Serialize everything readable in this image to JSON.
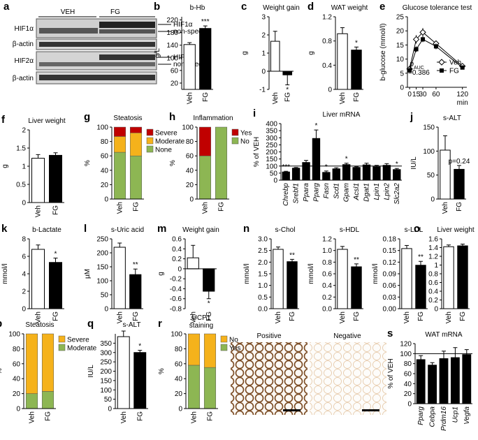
{
  "blot": {
    "letter": "a",
    "groups": [
      "VEH",
      "FG"
    ],
    "rows": [
      "HIF1α",
      "β-actin",
      "HIF2α",
      "β-actin"
    ],
    "arrows": [
      "HIF1α",
      "non-specific",
      "HIF2α",
      "non-specific"
    ]
  },
  "micrographs": {
    "labels": [
      "Positive",
      "Negative"
    ]
  },
  "chart_data": [
    {
      "type": "bar",
      "letter": "b",
      "title": "b-Hb",
      "ylabel": "g/L",
      "categories": [
        "Veh",
        "FG"
      ],
      "values": [
        142,
        193
      ],
      "errors": [
        6,
        8
      ],
      "colors": [
        "#ffffff",
        "#000000"
      ],
      "ylim": [
        0,
        230
      ],
      "yticks": [
        20,
        60,
        100,
        140,
        180,
        220
      ],
      "value_annotations": [
        null,
        "***"
      ]
    },
    {
      "type": "bar",
      "letter": "c",
      "title": "Weight gain",
      "ylabel": "g",
      "categories": [
        "Veh",
        "FG"
      ],
      "values": [
        1.65,
        -0.2
      ],
      "errors": [
        0.55,
        0.55
      ],
      "colors": [
        "#ffffff",
        "#000000"
      ],
      "ylim": [
        -1,
        3
      ],
      "yticks": [
        -1,
        0,
        1,
        2,
        3
      ],
      "value_annotations": [
        null,
        "*"
      ]
    },
    {
      "type": "bar",
      "letter": "d",
      "title": "WAT weight",
      "ylabel": "g",
      "categories": [
        "Veh",
        "FG"
      ],
      "values": [
        0.92,
        0.65
      ],
      "errors": [
        0.1,
        0.05
      ],
      "colors": [
        "#ffffff",
        "#000000"
      ],
      "ylim": [
        0,
        1.2
      ],
      "yticks": [
        0,
        0.4,
        0.8,
        1.2
      ],
      "value_annotations": [
        null,
        "*"
      ]
    },
    {
      "type": "line",
      "letter": "e",
      "title": "Glucose tolerance test",
      "ylabel": "b-glucose (mmol/l)",
      "xlabel": "min",
      "x": [
        0,
        15,
        30,
        60,
        120
      ],
      "xlim": [
        -5,
        130
      ],
      "xticks": [
        0,
        15,
        30,
        60,
        120
      ],
      "ylim": [
        0,
        25
      ],
      "yticks": [
        0,
        5,
        10,
        15,
        20,
        25
      ],
      "series": [
        {
          "name": "Veh",
          "color": "#000000",
          "marker": "diamond",
          "values": [
            6.5,
            17,
            19.5,
            15.5,
            7.5
          ],
          "errors": [
            0.5,
            1.5,
            1.5,
            1,
            0.8
          ]
        },
        {
          "name": "FG",
          "color": "#000000",
          "marker": "square",
          "values": [
            6,
            13.5,
            17,
            14.5,
            7
          ],
          "errors": [
            0.5,
            1,
            1,
            1,
            0.6
          ]
        }
      ],
      "annotation": [
        "p",
        "AUC",
        "=0.386"
      ]
    },
    {
      "type": "bar",
      "letter": "f",
      "title": "Liver weight",
      "ylabel": "g",
      "categories": [
        "Veh",
        "FG"
      ],
      "values": [
        1.22,
        1.3
      ],
      "errors": [
        0.1,
        0.07
      ],
      "colors": [
        "#ffffff",
        "#000000"
      ],
      "ylim": [
        0,
        2
      ],
      "yticks": [
        0,
        0.5,
        1,
        1.5,
        2
      ]
    },
    {
      "type": "stacked_bar",
      "letter": "g",
      "title": "Steatosis",
      "ylabel": "%",
      "categories": [
        "Veh",
        "FG"
      ],
      "ylim": [
        0,
        100
      ],
      "yticks": [
        0,
        20,
        40,
        60,
        80,
        100
      ],
      "series": [
        {
          "name": "None",
          "color": "#8db653",
          "values": [
            65,
            60
          ]
        },
        {
          "name": "Moderate",
          "color": "#f5b21b",
          "values": [
            22,
            32
          ]
        },
        {
          "name": "Severe",
          "color": "#c00000",
          "values": [
            13,
            8
          ]
        }
      ]
    },
    {
      "type": "stacked_bar",
      "letter": "h",
      "title": "Inflammation",
      "ylabel": "%",
      "categories": [
        "Veh",
        "FG"
      ],
      "ylim": [
        0,
        100
      ],
      "yticks": [
        0,
        20,
        40,
        60,
        80,
        100
      ],
      "series": [
        {
          "name": "No",
          "color": "#8db653",
          "values": [
            60,
            100
          ]
        },
        {
          "name": "Yes",
          "color": "#c00000",
          "values": [
            40,
            0
          ]
        }
      ]
    },
    {
      "type": "bar",
      "letter": "i",
      "title": "Liver mRNA",
      "ylabel": "% of VEH",
      "italic_categories": true,
      "categories": [
        "Chrebp",
        "Srebf1",
        "Ppara",
        "Pparg",
        "Fasn",
        "Scd1",
        "Gpam",
        "Acsl1",
        "Dgat1",
        "Lpin1",
        "Lpin2",
        "Slc2a2"
      ],
      "values": [
        58,
        85,
        125,
        295,
        55,
        80,
        110,
        90,
        108,
        95,
        105,
        75
      ],
      "errors": [
        5,
        5,
        15,
        60,
        10,
        8,
        10,
        5,
        12,
        10,
        12,
        8
      ],
      "color": "#000000",
      "reference_line": 100,
      "ylim": [
        0,
        400
      ],
      "yticks": [
        0,
        50,
        100,
        150,
        200,
        250,
        300,
        350,
        400
      ],
      "value_annotations": [
        "***",
        null,
        null,
        "*",
        "*",
        null,
        "*",
        null,
        null,
        null,
        null,
        "*"
      ]
    },
    {
      "type": "bar",
      "letter": "j",
      "title": "s-ALT",
      "ylabel": "IU/L",
      "categories": [
        "Veh",
        "FG"
      ],
      "values": [
        102,
        62
      ],
      "errors": [
        30,
        8
      ],
      "colors": [
        "#ffffff",
        "#000000"
      ],
      "ylim": [
        0,
        150
      ],
      "yticks": [
        0,
        50,
        100,
        150
      ],
      "value_annotations": [
        null,
        "p=0.24"
      ]
    },
    {
      "type": "bar",
      "letter": "k",
      "title": "b-Lactate",
      "ylabel": "mmol/l",
      "categories": [
        "Veh",
        "FG"
      ],
      "values": [
        6.8,
        5.3
      ],
      "errors": [
        0.5,
        0.5
      ],
      "colors": [
        "#ffffff",
        "#000000"
      ],
      "ylim": [
        0,
        8
      ],
      "yticks": [
        0,
        2,
        4,
        6,
        8
      ],
      "value_annotations": [
        null,
        "*"
      ]
    },
    {
      "type": "bar",
      "letter": "l",
      "title": "s-Uric acid",
      "ylabel": "µM",
      "categories": [
        "Veh",
        "FG"
      ],
      "values": [
        220,
        122
      ],
      "errors": [
        15,
        20
      ],
      "colors": [
        "#ffffff",
        "#000000"
      ],
      "ylim": [
        0,
        250
      ],
      "yticks": [
        0,
        50,
        100,
        150,
        200,
        250
      ],
      "value_annotations": [
        null,
        "**"
      ]
    },
    {
      "type": "bar",
      "letter": "m",
      "title": "Weight gain",
      "ylabel": "g",
      "categories": [
        "Veh",
        "FG"
      ],
      "values": [
        0.22,
        -0.45
      ],
      "errors": [
        0.25,
        0.15
      ],
      "colors": [
        "#ffffff",
        "#000000"
      ],
      "ylim": [
        -0.8,
        0.6
      ],
      "yticks": [
        -0.8,
        -0.6,
        -0.4,
        -0.2,
        0,
        0.2,
        0.4,
        0.6
      ],
      "value_annotations": [
        null,
        "*"
      ]
    },
    {
      "type": "bar",
      "letter": "n",
      "title": "s-Chol",
      "ylabel": "mmol/l",
      "categories": [
        "Veh",
        "FG"
      ],
      "values": [
        2.55,
        2.02
      ],
      "errors": [
        0.1,
        0.1
      ],
      "colors": [
        "#ffffff",
        "#000000"
      ],
      "ylim": [
        0,
        3
      ],
      "yticks": [
        {
          "value": 0,
          "label": "0.0"
        },
        0.5,
        {
          "value": 1,
          "label": "1.0"
        },
        1.5,
        {
          "value": 2,
          "label": "2.0"
        },
        2.5,
        {
          "value": 3,
          "label": "3.0"
        }
      ],
      "value_annotations": [
        null,
        "**"
      ]
    },
    {
      "type": "bar",
      "title": "s-HDL",
      "ylabel": "mmol/l",
      "categories": [
        "Veh",
        "FG"
      ],
      "values": [
        1.02,
        0.72
      ],
      "errors": [
        0.05,
        0.05
      ],
      "colors": [
        "#ffffff",
        "#000000"
      ],
      "ylim": [
        0,
        1.2
      ],
      "yticks": [
        {
          "value": 0,
          "label": "0.0"
        },
        0.2,
        0.4,
        0.6,
        0.8,
        {
          "value": 1,
          "label": "1.0"
        },
        1.2
      ],
      "value_annotations": [
        null,
        "**"
      ]
    },
    {
      "type": "bar",
      "title": "s-LDL",
      "ylabel": "mmol/l",
      "categories": [
        "Veh",
        "FG"
      ],
      "values": [
        0.155,
        0.112
      ],
      "errors": [
        0.008,
        0.01
      ],
      "colors": [
        "#ffffff",
        "#000000"
      ],
      "ylim": [
        0,
        0.18
      ],
      "yticks": [
        {
          "value": 0,
          "label": "0.00"
        },
        0.03,
        0.06,
        0.09,
        0.12,
        0.15,
        0.18
      ],
      "value_annotations": [
        null,
        "**"
      ]
    },
    {
      "type": "bar",
      "letter": "o",
      "title": "Liver weight",
      "ylabel": "g",
      "categories": [
        "Veh",
        "FG"
      ],
      "values": [
        1.42,
        1.44
      ],
      "errors": [
        0.04,
        0.04
      ],
      "colors": [
        "#ffffff",
        "#000000"
      ],
      "ylim": [
        0,
        1.6
      ],
      "yticks": [
        0,
        0.2,
        0.4,
        0.6,
        0.8,
        1,
        1.2,
        1.4,
        1.6
      ]
    },
    {
      "type": "stacked_bar",
      "letter": "p",
      "title": "Steatosis",
      "ylabel": "%",
      "categories": [
        "Veh",
        "FG"
      ],
      "ylim": [
        0,
        100
      ],
      "yticks": [
        0,
        20,
        40,
        60,
        80,
        100
      ],
      "series": [
        {
          "name": "Moderate",
          "color": "#8db653",
          "values": [
            20,
            23
          ]
        },
        {
          "name": "Severe",
          "color": "#f5b21b",
          "values": [
            80,
            77
          ]
        }
      ]
    },
    {
      "type": "bar",
      "letter": "q",
      "title": "s-ALT",
      "ylabel": "IU/L",
      "categories": [
        "Veh",
        "FG"
      ],
      "values": [
        385,
        300
      ],
      "errors": [
        30,
        12
      ],
      "colors": [
        "#ffffff",
        "#000000"
      ],
      "ylim": [
        0,
        400
      ],
      "yticks": [
        0,
        50,
        100,
        150,
        200,
        250,
        300,
        350
      ],
      "value_annotations": [
        null,
        "*"
      ]
    },
    {
      "type": "stacked_bar",
      "letter": "r",
      "title_lines": [
        "UCP1",
        "staining"
      ],
      "ylabel": "%",
      "categories": [
        "Veh",
        "FG"
      ],
      "ylim": [
        0,
        100
      ],
      "yticks": [
        0,
        20,
        40,
        60,
        80,
        100
      ],
      "series": [
        {
          "name": "Yes",
          "color": "#8db653",
          "values": [
            58,
            55
          ]
        },
        {
          "name": "No",
          "color": "#f5b21b",
          "values": [
            42,
            45
          ]
        }
      ]
    },
    {
      "type": "bar",
      "letter": "s",
      "title": "WAT mRNA",
      "ylabel": "% of VEH",
      "italic_categories": true,
      "categories": [
        "Pparg",
        "Cebpa",
        "Prdm16",
        "Ucp1",
        "Vegfa"
      ],
      "values": [
        88,
        77,
        90,
        92,
        98
      ],
      "errors": [
        8,
        5,
        15,
        20,
        10
      ],
      "color": "#000000",
      "reference_line": 100,
      "ylim": [
        0,
        120
      ],
      "yticks": [
        0,
        20,
        40,
        60,
        80,
        100,
        120
      ]
    }
  ]
}
